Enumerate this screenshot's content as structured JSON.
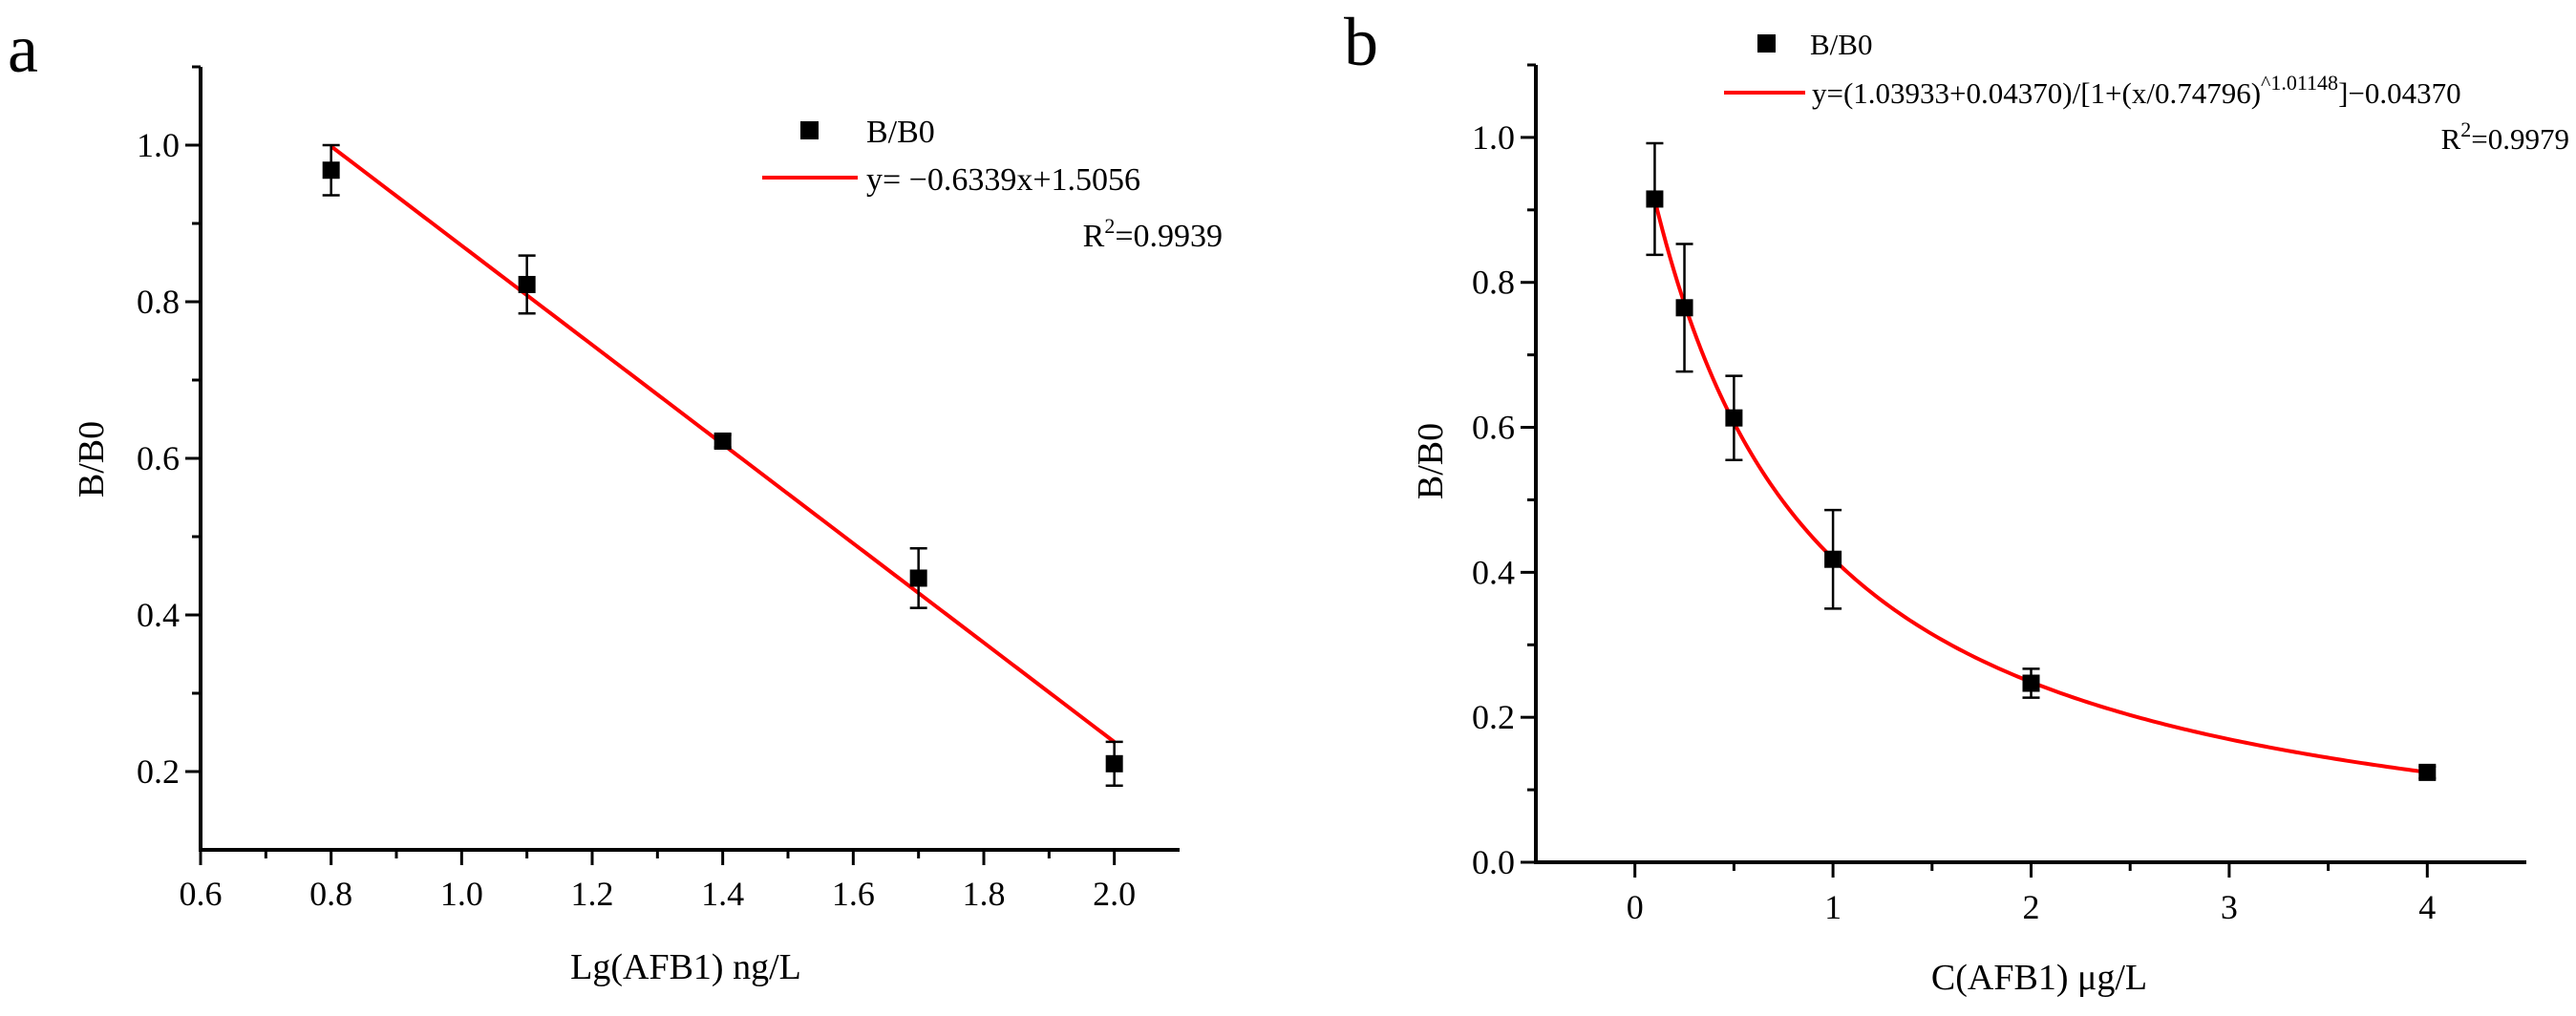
{
  "chart_data": [
    {
      "type": "scatter",
      "panel_label": "a",
      "xlabel": "Lg(AFB1) ng/L",
      "ylabel": "B/B0",
      "xlim": [
        0.6,
        2.1
      ],
      "ylim": [
        0.1,
        1.1
      ],
      "xticks": [
        0.6,
        0.8,
        1.0,
        1.2,
        1.4,
        1.6,
        1.8,
        2.0
      ],
      "xtick_labels": [
        "0.6",
        "0.8",
        "1.0",
        "1.2",
        "1.4",
        "1.6",
        "1.8",
        "2.0"
      ],
      "yticks": [
        0.2,
        0.4,
        0.6,
        0.8,
        1.0
      ],
      "ytick_labels": [
        "0.2",
        "0.4",
        "0.6",
        "0.8",
        "1.0"
      ],
      "series": [
        {
          "name": "B/B0",
          "x": [
            0.8,
            1.1,
            1.4,
            1.7,
            2.0
          ],
          "y": [
            0.968,
            0.822,
            0.622,
            0.447,
            0.21
          ],
          "err": [
            0.032,
            0.037,
            0.008,
            0.038,
            0.028
          ]
        }
      ],
      "fit": {
        "kind": "linear",
        "slope": -0.6339,
        "intercept": 1.5056,
        "x_range": [
          0.8,
          2.0
        ],
        "color": "#ff0000"
      },
      "legend": {
        "marker_label": "B/B0",
        "equation": "y= −0.6339x+1.5056",
        "r2_prefix": "R",
        "r2_exp": "2",
        "r2_value": "=0.9939"
      }
    },
    {
      "type": "scatter",
      "panel_label": "b",
      "xlabel": "C(AFB1) μg/L",
      "ylabel": "B/B0",
      "xlim": [
        -0.5,
        4.5
      ],
      "ylim": [
        0.0,
        1.1
      ],
      "xticks": [
        0,
        1,
        2,
        3,
        4
      ],
      "xtick_labels": [
        "0",
        "1",
        "2",
        "3",
        "4"
      ],
      "yticks": [
        0.0,
        0.2,
        0.4,
        0.6,
        0.8,
        1.0
      ],
      "ytick_labels": [
        "0.0",
        "0.2",
        "0.4",
        "0.6",
        "0.8",
        "1.0"
      ],
      "series": [
        {
          "name": "B/B0",
          "x": [
            0.1,
            0.25,
            0.5,
            1.0,
            2.0,
            4.0
          ],
          "y": [
            0.915,
            0.765,
            0.613,
            0.418,
            0.247,
            0.124
          ],
          "err": [
            0.077,
            0.088,
            0.058,
            0.068,
            0.02,
            0.008
          ]
        }
      ],
      "fit": {
        "kind": "logistic",
        "A1": 1.03933,
        "A2": -0.0437,
        "x0": 0.74796,
        "p": 1.01148,
        "x_range": [
          0.1,
          4.0
        ],
        "color": "#ff0000"
      },
      "legend": {
        "marker_label": "B/B0",
        "equation_main": "y=(1.03933+0.04370)/[1+(x/0.74796)",
        "equation_exp": "^1.01148",
        "equation_tail": "]−0.04370",
        "r2_prefix": "R",
        "r2_exp": "2",
        "r2_value": "=0.9979"
      }
    }
  ]
}
